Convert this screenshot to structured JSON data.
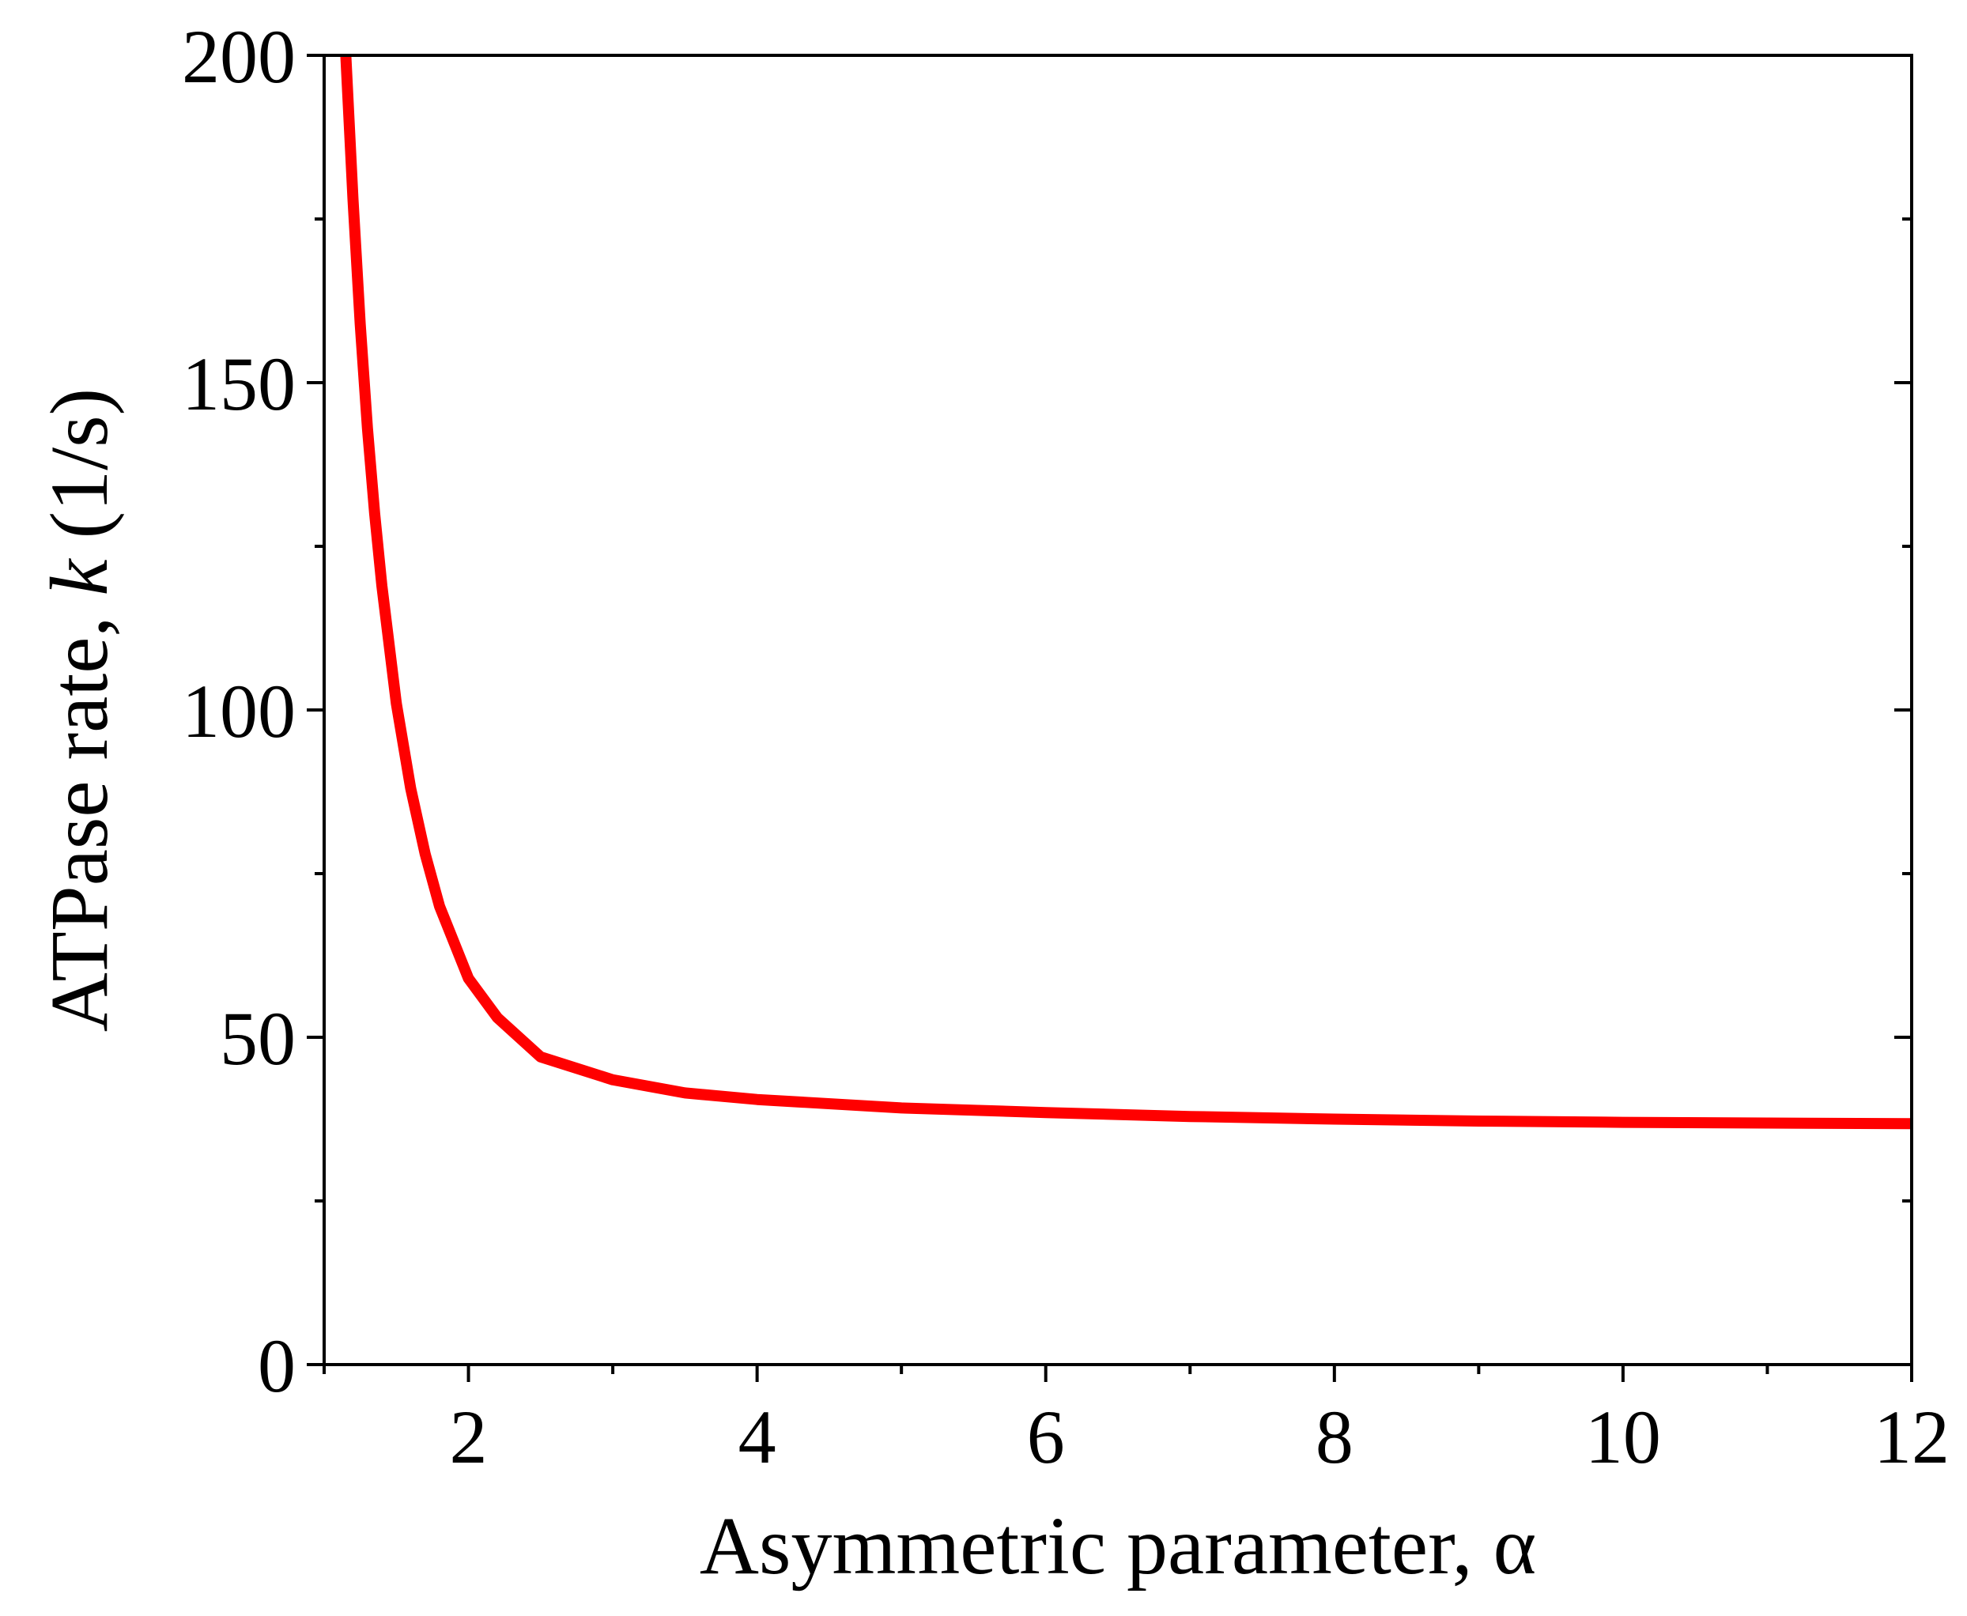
{
  "chart_data": {
    "type": "line",
    "title": "",
    "xlabel": "Asymmetric parameter, α",
    "ylabel_parts": [
      "ATPase rate, ",
      "k",
      " (1/s)"
    ],
    "xlim": [
      1,
      12
    ],
    "ylim": [
      0,
      200
    ],
    "x_major_ticks": [
      2,
      4,
      6,
      8,
      10,
      12
    ],
    "x_tick_labels": [
      "2",
      "4",
      "6",
      "8",
      "10",
      "12"
    ],
    "x_minor_ticks": [
      1,
      3,
      5,
      7,
      9,
      11
    ],
    "y_major_ticks": [
      0,
      50,
      100,
      150,
      200
    ],
    "y_tick_labels": [
      "0",
      "50",
      "100",
      "150",
      "200"
    ],
    "y_minor_ticks": [
      25,
      75,
      125,
      175
    ],
    "grid": false,
    "legend": "none",
    "series": [
      {
        "color": "#ff0000",
        "x": [
          1.15,
          1.2,
          1.25,
          1.3,
          1.35,
          1.4,
          1.5,
          1.6,
          1.7,
          1.8,
          2.0,
          2.2,
          2.5,
          3.0,
          3.5,
          4.0,
          5.0,
          6.0,
          7.0,
          8.0,
          9.0,
          10.0,
          11.0,
          12.0
        ],
        "y": [
          200,
          178,
          159,
          143,
          130,
          119,
          101,
          88,
          78,
          70,
          59,
          53,
          47,
          43.5,
          41.5,
          40.5,
          39.2,
          38.5,
          37.9,
          37.5,
          37.2,
          37.0,
          36.9,
          36.8
        ]
      }
    ]
  }
}
